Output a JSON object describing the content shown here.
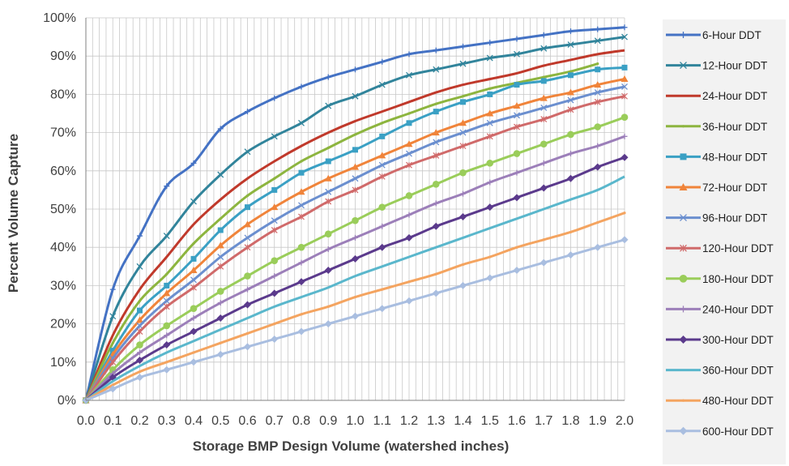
{
  "chart_data": {
    "type": "line",
    "title": "",
    "xlabel": "Storage BMP Design Volume (watershed inches)",
    "ylabel": "Percent Volume Capture",
    "xlim": [
      0,
      2.0
    ],
    "ylim": [
      0,
      100
    ],
    "x_ticks": [
      "0.0",
      "0.1",
      "0.2",
      "0.3",
      "0.4",
      "0.5",
      "0.6",
      "0.7",
      "0.8",
      "0.9",
      "1.0",
      "1.1",
      "1.2",
      "1.3",
      "1.4",
      "1.5",
      "1.6",
      "1.7",
      "1.8",
      "1.9",
      "2.0"
    ],
    "y_ticks": [
      "0%",
      "10%",
      "20%",
      "30%",
      "40%",
      "50%",
      "60%",
      "70%",
      "80%",
      "90%",
      "100%"
    ],
    "grid": true,
    "legend_position": "right",
    "x": [
      0,
      0.1,
      0.2,
      0.3,
      0.4,
      0.5,
      0.6,
      0.7,
      0.8,
      0.9,
      1.0,
      1.1,
      1.2,
      1.3,
      1.4,
      1.5,
      1.6,
      1.7,
      1.8,
      1.9,
      2.0
    ],
    "series": [
      {
        "name": "6-Hour DDT",
        "color": "#4472C4",
        "marker": "plus",
        "values": [
          0,
          29,
          43,
          56,
          62,
          71,
          75.5,
          79,
          82,
          84.5,
          86.5,
          88.5,
          90.5,
          91.5,
          92.5,
          93.5,
          94.5,
          95.5,
          96.5,
          97,
          97.5
        ]
      },
      {
        "name": "12-Hour DDT",
        "color": "#31849B",
        "marker": "x",
        "values": [
          0,
          22,
          35,
          43,
          52,
          59,
          65,
          69,
          72.5,
          77,
          79.5,
          82.5,
          85,
          86.5,
          88,
          89.5,
          90.5,
          92,
          93,
          94,
          95
        ]
      },
      {
        "name": "24-Hour DDT",
        "color": "#C0392B",
        "marker": "none",
        "values": [
          0,
          17,
          29,
          37.5,
          46,
          52.5,
          58,
          62.5,
          66.5,
          70,
          73,
          75.5,
          78,
          80.5,
          82.5,
          84,
          85.5,
          87.5,
          89,
          90.5,
          91.5
        ]
      },
      {
        "name": "36-Hour DDT",
        "color": "#8DB53F",
        "marker": "small",
        "values": [
          0,
          15,
          26,
          33,
          41,
          47.5,
          53.5,
          58,
          62.5,
          66,
          69.5,
          72.5,
          75,
          77.5,
          79.5,
          81.5,
          83,
          84.5,
          86,
          88,
          null
        ]
      },
      {
        "name": "48-Hour DDT",
        "color": "#3AA0C4",
        "marker": "square",
        "values": [
          0,
          13,
          23.5,
          30,
          37,
          44.5,
          50.5,
          55,
          59.5,
          62.5,
          65.5,
          69,
          72.5,
          75.5,
          78,
          80,
          82.5,
          83.5,
          85,
          86.5,
          87
        ]
      },
      {
        "name": "72-Hour DDT",
        "color": "#F0843A",
        "marker": "triangle",
        "values": [
          0,
          12,
          21,
          28,
          34,
          40.5,
          46,
          50.5,
          54.5,
          58,
          61,
          64,
          67,
          70,
          72.5,
          75,
          77,
          79,
          80.5,
          82.5,
          84
        ]
      },
      {
        "name": "96-Hour DDT",
        "color": "#6B8FCF",
        "marker": "x",
        "values": [
          0,
          11,
          19.5,
          26,
          31.5,
          37.5,
          42.5,
          47,
          51,
          54.5,
          58,
          61.5,
          64.5,
          67.5,
          70,
          72.5,
          74.5,
          76.5,
          78.5,
          80.5,
          82
        ]
      },
      {
        "name": "120-Hour DDT",
        "color": "#D06A6A",
        "marker": "star",
        "values": [
          0,
          10,
          18,
          24.5,
          29.5,
          35,
          40,
          44.5,
          48,
          52,
          55,
          58.5,
          61.5,
          64,
          66.5,
          69,
          71.5,
          73.5,
          76,
          78,
          79.5
        ]
      },
      {
        "name": "180-Hour DDT",
        "color": "#9ACD5A",
        "marker": "circle",
        "values": [
          0,
          8,
          14.5,
          19.5,
          24,
          28.5,
          32.5,
          36.5,
          40,
          43.5,
          47,
          50.5,
          53.5,
          56.5,
          59.5,
          62,
          64.5,
          67,
          69.5,
          71.5,
          74
        ]
      },
      {
        "name": "240-Hour DDT",
        "color": "#9C7FB9",
        "marker": "plus",
        "values": [
          0,
          7,
          12.5,
          17,
          21.5,
          25.5,
          29,
          32.5,
          36,
          39.5,
          42.5,
          45.5,
          48.5,
          51.5,
          54,
          57,
          59.5,
          62,
          64.5,
          66.5,
          69
        ]
      },
      {
        "name": "300-Hour DDT",
        "color": "#5B3A8C",
        "marker": "diamond",
        "values": [
          0,
          6,
          10.5,
          14.5,
          18,
          21.5,
          25,
          28,
          31,
          34,
          37,
          40,
          42.5,
          45.5,
          48,
          50.5,
          53,
          55.5,
          58,
          61,
          63.5
        ]
      },
      {
        "name": "360-Hour DDT",
        "color": "#5AB7CC",
        "marker": "none",
        "values": [
          0,
          5,
          9,
          12.5,
          15.5,
          18.5,
          21.5,
          24.5,
          27,
          29.5,
          32.5,
          35,
          37.5,
          40,
          42.5,
          45,
          47.5,
          50,
          52.5,
          55,
          58.5
        ]
      },
      {
        "name": "480-Hour DDT",
        "color": "#F4A460",
        "marker": "small",
        "values": [
          0,
          4,
          7.5,
          10,
          12.5,
          15,
          17.5,
          20,
          22.5,
          24.5,
          27,
          29,
          31,
          33,
          35.5,
          37.5,
          40,
          42,
          44,
          46.5,
          49
        ]
      },
      {
        "name": "600-Hour DDT",
        "color": "#A9BEE0",
        "marker": "diamond",
        "values": [
          0,
          3,
          6,
          8,
          10,
          12,
          14,
          16,
          18,
          20,
          22,
          24,
          26,
          28,
          30,
          32,
          34,
          36,
          38,
          40,
          42
        ]
      }
    ]
  }
}
